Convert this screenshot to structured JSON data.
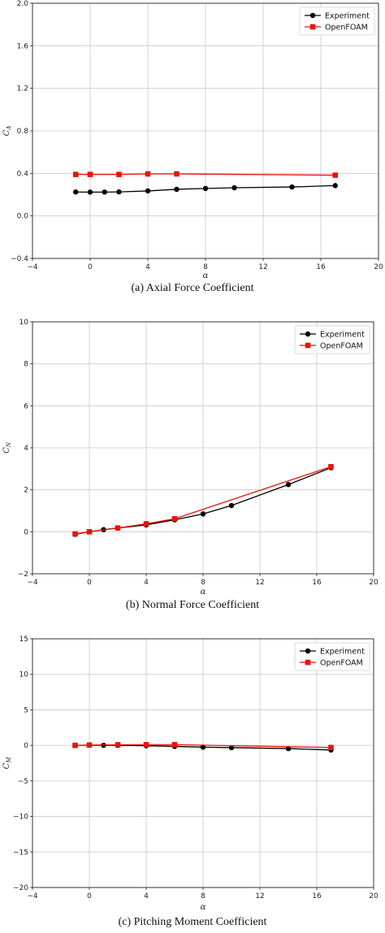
{
  "chart_data": [
    {
      "type": "line",
      "caption": "(a) Axial Force Coefficient",
      "xlabel": "α",
      "ylabel": "C_A",
      "xlim": [
        -4,
        20
      ],
      "ylim": [
        -0.4,
        2.0
      ],
      "xticks": [
        "−4",
        "0",
        "4",
        "8",
        "12",
        "16",
        "20"
      ],
      "yticks": [
        "−0.4",
        "0.0",
        "0.4",
        "0.8",
        "1.2",
        "1.6",
        "2.0"
      ],
      "grid": true,
      "legend": "top-right",
      "series": [
        {
          "name": "Experiment",
          "color": "#000000",
          "marker": "circle",
          "x": [
            -1,
            0,
            1,
            2,
            4,
            6,
            8,
            10,
            14,
            17
          ],
          "y": [
            0.225,
            0.224,
            0.224,
            0.226,
            0.235,
            0.25,
            0.258,
            0.265,
            0.272,
            0.285
          ]
        },
        {
          "name": "OpenFOAM",
          "color": "#e8130d",
          "marker": "square",
          "x": [
            -1,
            0,
            2,
            4,
            6,
            17
          ],
          "y": [
            0.39,
            0.39,
            0.39,
            0.395,
            0.395,
            0.383
          ]
        }
      ]
    },
    {
      "type": "line",
      "caption": "(b) Normal Force Coefficient",
      "xlabel": "α",
      "ylabel": "C_N",
      "xlim": [
        -4,
        20
      ],
      "ylim": [
        -2,
        10
      ],
      "xticks": [
        "−4",
        "0",
        "4",
        "8",
        "12",
        "16",
        "20"
      ],
      "yticks": [
        "−2",
        "0",
        "2",
        "4",
        "6",
        "8",
        "10"
      ],
      "grid": true,
      "legend": "top-right",
      "series": [
        {
          "name": "Experiment",
          "color": "#000000",
          "marker": "circle",
          "x": [
            -1,
            0,
            1,
            2,
            4,
            6,
            8,
            10,
            14,
            17
          ],
          "y": [
            -0.12,
            0.0,
            0.1,
            0.18,
            0.33,
            0.57,
            0.85,
            1.25,
            2.25,
            3.05
          ]
        },
        {
          "name": "OpenFOAM",
          "color": "#e8130d",
          "marker": "square",
          "x": [
            -1,
            0,
            2,
            4,
            6,
            17
          ],
          "y": [
            -0.1,
            0.0,
            0.18,
            0.38,
            0.62,
            3.1
          ]
        }
      ]
    },
    {
      "type": "line",
      "caption": "(c) Pitching Moment Coefficient",
      "xlabel": "α",
      "ylabel": "C_M",
      "xlim": [
        -4,
        20
      ],
      "ylim": [
        -20,
        15
      ],
      "xticks": [
        "−4",
        "0",
        "4",
        "8",
        "12",
        "16",
        "20"
      ],
      "yticks": [
        "−20",
        "−15",
        "−10",
        "−5",
        "0",
        "5",
        "10",
        "15"
      ],
      "grid": true,
      "legend": "top-right",
      "series": [
        {
          "name": "Experiment",
          "color": "#000000",
          "marker": "circle",
          "x": [
            -1,
            0,
            1,
            2,
            4,
            6,
            8,
            10,
            14,
            17
          ],
          "y": [
            0.0,
            0.02,
            0.01,
            0.0,
            -0.05,
            -0.15,
            -0.25,
            -0.32,
            -0.45,
            -0.65
          ]
        },
        {
          "name": "OpenFOAM",
          "color": "#e8130d",
          "marker": "square",
          "x": [
            -1,
            0,
            2,
            4,
            6,
            17
          ],
          "y": [
            0.0,
            0.05,
            0.08,
            0.1,
            0.1,
            -0.3
          ]
        }
      ]
    }
  ]
}
